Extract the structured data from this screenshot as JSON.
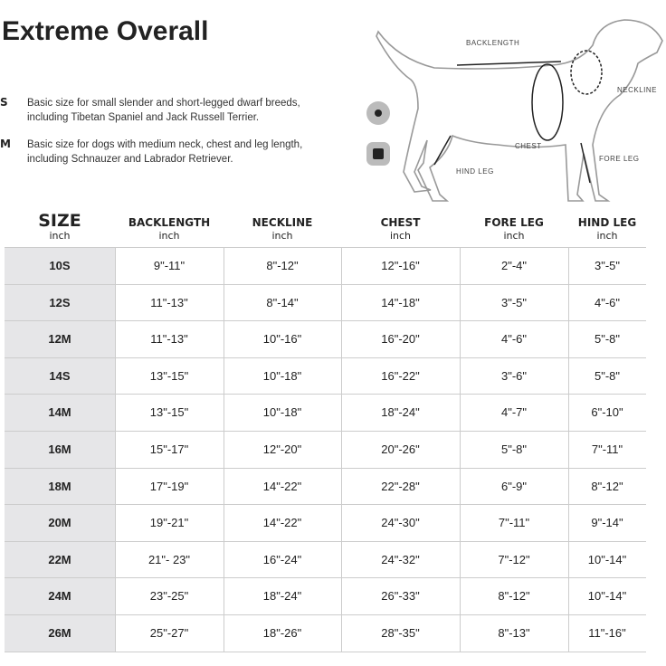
{
  "title": "Extreme Overall",
  "sizes": [
    {
      "code": "S",
      "lines": [
        "Basic size for small slender and short-legged dwarf breeds,",
        "including Tibetan Spaniel and Jack Russell Terrier."
      ]
    },
    {
      "code": "M",
      "lines": [
        "Basic size for dogs with medium neck, chest and leg length,",
        "including Schnauzer and Labrador Retriever."
      ]
    }
  ],
  "diagram": {
    "backlength": "BACKLENGTH",
    "neckline": "NECKLINE",
    "chest": "CHEST",
    "fore_leg": "FORE LEG",
    "hind_leg": "HIND LEG"
  },
  "table": {
    "header": [
      {
        "label": "SIZE",
        "unit": "inch"
      },
      {
        "label": "BACKLENGTH",
        "unit": "inch"
      },
      {
        "label": "NECKLINE",
        "unit": "inch"
      },
      {
        "label": "CHEST",
        "unit": "inch"
      },
      {
        "label": "FORE LEG",
        "unit": "inch"
      },
      {
        "label": "HIND LEG",
        "unit": "inch"
      }
    ],
    "rows": [
      [
        "10S",
        "9\"-11\"",
        "8\"-12\"",
        "12\"-16\"",
        "2\"-4\"",
        "3\"-5\""
      ],
      [
        "12S",
        "11\"-13\"",
        "8\"-14\"",
        "14\"-18\"",
        "3\"-5\"",
        "4\"-6\""
      ],
      [
        "12M",
        "11\"-13\"",
        "10\"-16\"",
        "16\"-20\"",
        "4\"-6\"",
        "5\"-8\""
      ],
      [
        "14S",
        "13\"-15\"",
        "10\"-18\"",
        "16\"-22\"",
        "3\"-6\"",
        "5\"-8\""
      ],
      [
        "14M",
        "13\"-15\"",
        "10\"-18\"",
        "18\"-24\"",
        "4\"-7\"",
        "6\"-10\""
      ],
      [
        "16M",
        "15\"-17\"",
        "12\"-20\"",
        "20\"-26\"",
        "5\"-8\"",
        "7\"-11\""
      ],
      [
        "18M",
        "17\"-19\"",
        "14\"-22\"",
        "22\"-28\"",
        "6\"-9\"",
        "8\"-12\""
      ],
      [
        "20M",
        "19\"-21\"",
        "14\"-22\"",
        "24\"-30\"",
        "7\"-11\"",
        "9\"-14\""
      ],
      [
        "22M",
        "21\"- 23\"",
        "16\"-24\"",
        "24\"-32\"",
        "7\"-12\"",
        "10\"-14\""
      ],
      [
        "24M",
        "23\"-25\"",
        "18\"-24\"",
        "26\"-33\"",
        "8\"-12\"",
        "10\"-14\""
      ],
      [
        "26M",
        "25\"-27\"",
        "18\"-26\"",
        "28\"-35\"",
        "8\"-13\"",
        "11\"-16\""
      ]
    ]
  }
}
